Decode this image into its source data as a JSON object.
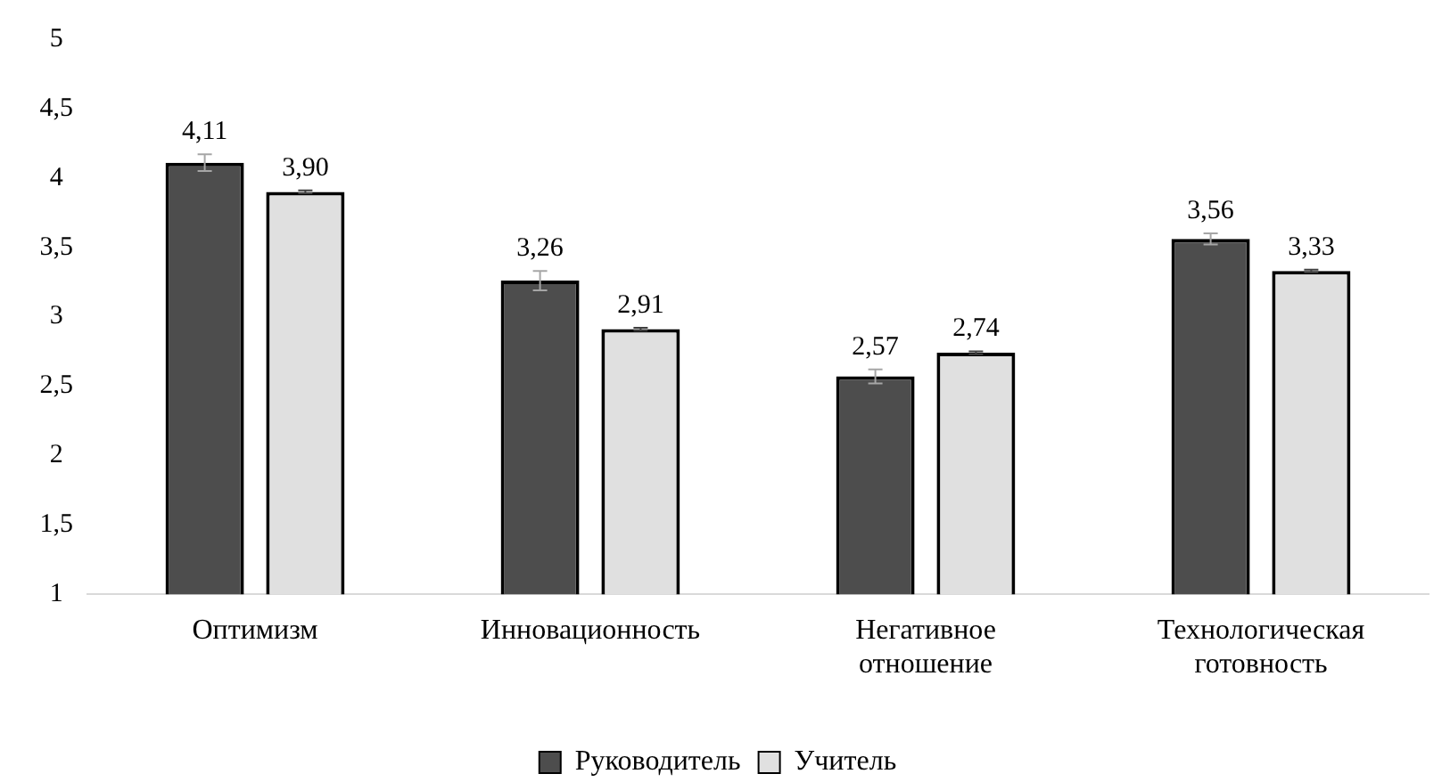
{
  "chart_data": {
    "type": "bar",
    "categories": [
      "Оптимизм",
      "Инновационность",
      "Негативное отношение",
      "Технологическая готовность"
    ],
    "series": [
      {
        "name": "Руководитель",
        "color": "#4d4d4d",
        "values": [
          4.11,
          3.26,
          2.57,
          3.56
        ],
        "errors": [
          0.06,
          0.07,
          0.05,
          0.04
        ],
        "value_labels": [
          "4,11",
          "3,26",
          "2,57",
          "3,56"
        ]
      },
      {
        "name": "Учитель",
        "color": "#e0e0e0",
        "values": [
          3.9,
          2.91,
          2.74,
          3.33
        ],
        "errors": [
          0.01,
          0.01,
          0.01,
          0.01
        ],
        "value_labels": [
          "3,90",
          "2,91",
          "2,74",
          "3,33"
        ]
      }
    ],
    "ylim": [
      1,
      5
    ],
    "yticks": [
      1,
      {
        "value": 1.5,
        "label": "1,5"
      },
      2,
      {
        "value": 2.5,
        "label": "2,5"
      },
      3,
      {
        "value": 3.5,
        "label": "3,5"
      },
      4,
      {
        "value": 4.5,
        "label": "4,5"
      },
      5
    ],
    "legend": "bottom"
  }
}
